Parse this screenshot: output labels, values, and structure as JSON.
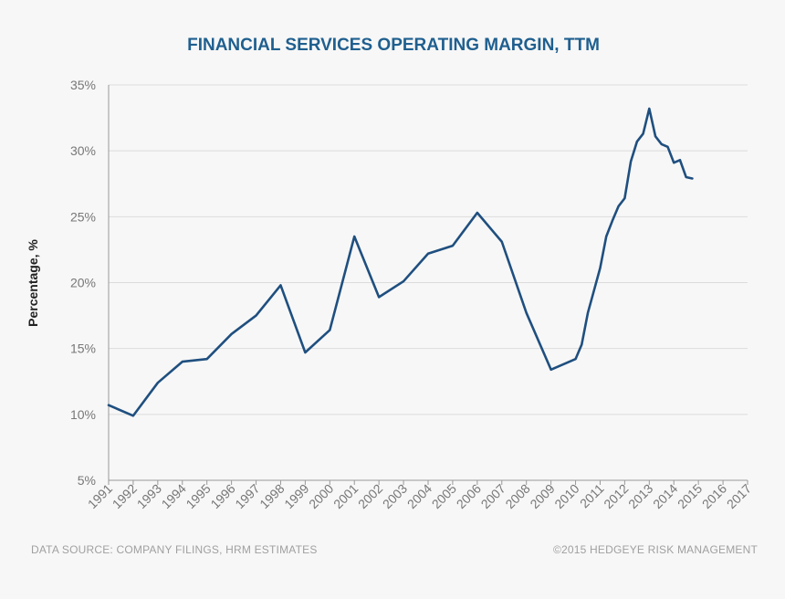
{
  "chart_data": {
    "type": "line",
    "title": "FINANCIAL SERVICES OPERATING MARGIN, TTM",
    "xlabel": "",
    "ylabel": "Percentage, %",
    "xlim": [
      1991,
      2017
    ],
    "ylim": [
      5,
      35
    ],
    "x_ticks": [
      1991,
      1992,
      1993,
      1994,
      1995,
      1996,
      1997,
      1998,
      1999,
      2000,
      2001,
      2002,
      2003,
      2004,
      2005,
      2006,
      2007,
      2008,
      2009,
      2010,
      2011,
      2012,
      2013,
      2014,
      2015,
      2016,
      2017
    ],
    "x_tick_labels": [
      "1991",
      "1992",
      "1993",
      "1994",
      "1995",
      "1996",
      "1997",
      "1998",
      "1999",
      "2000",
      "2001",
      "2002",
      "2003",
      "2004",
      "2005",
      "2006",
      "2007",
      "2008",
      "2009",
      "2010",
      "2011",
      "2012",
      "2013",
      "2014",
      "2015",
      "2016",
      "2017"
    ],
    "y_ticks": [
      5,
      10,
      15,
      20,
      25,
      30,
      35
    ],
    "y_tick_labels": [
      "5%",
      "10%",
      "15%",
      "20%",
      "25%",
      "30%",
      "35%"
    ],
    "grid": true,
    "series": [
      {
        "name": "Financial Services Operating Margin, TTM",
        "color": "#1f4f7f",
        "x": [
          1991.0,
          1992.0,
          1993.0,
          1994.0,
          1995.0,
          1996.0,
          1997.0,
          1998.0,
          1999.0,
          2000.0,
          2001.0,
          2002.0,
          2003.0,
          2004.0,
          2005.0,
          2006.0,
          2007.0,
          2008.0,
          2009.0,
          2010.0,
          2010.25,
          2010.5,
          2010.75,
          2011.0,
          2011.25,
          2011.5,
          2011.75,
          2012.0,
          2012.25,
          2012.5,
          2012.75,
          2013.0,
          2013.25,
          2013.5,
          2013.75,
          2014.0,
          2014.25,
          2014.5,
          2014.75
        ],
        "values": [
          10.7,
          9.9,
          12.4,
          14.0,
          14.2,
          16.1,
          17.5,
          19.8,
          14.7,
          16.4,
          23.5,
          18.9,
          20.1,
          22.2,
          22.8,
          25.3,
          23.1,
          17.7,
          13.4,
          14.2,
          15.3,
          17.7,
          19.4,
          21.1,
          23.5,
          24.7,
          25.8,
          26.4,
          29.2,
          30.7,
          31.3,
          33.2,
          31.1,
          30.5,
          30.3,
          29.1,
          29.3,
          28.0,
          27.9
        ]
      }
    ]
  },
  "footer": {
    "source": "DATA SOURCE: COMPANY FILINGS, HRM ESTIMATES",
    "copyright": "©2015 HEDGEYE RISK MANAGEMENT"
  }
}
